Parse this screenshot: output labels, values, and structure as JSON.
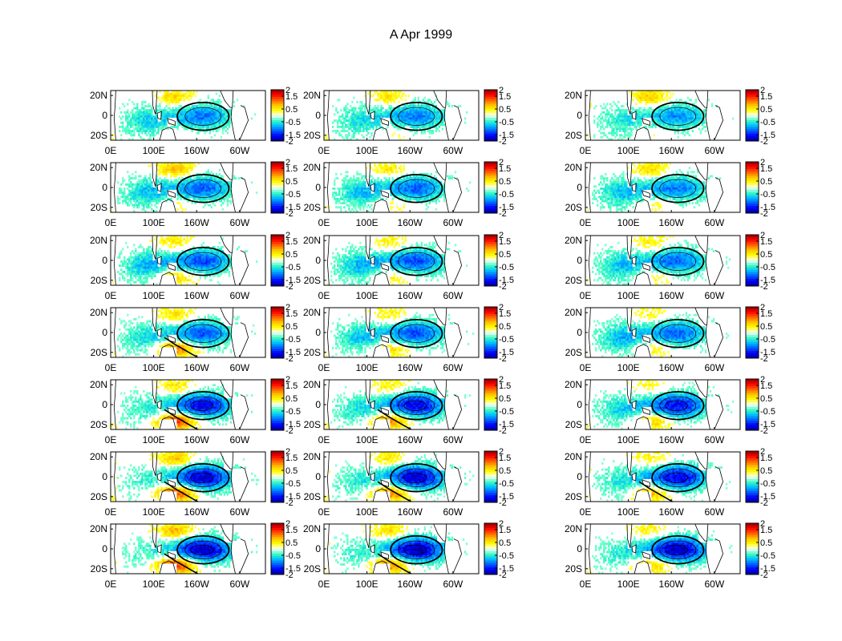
{
  "figure": {
    "title": "A Apr 1999"
  },
  "chart_data": {
    "type": "heatmap",
    "title": "A Apr 1999",
    "grid": {
      "rows": 7,
      "cols": 3
    },
    "x_ticks": [
      "0E",
      "100E",
      "160W",
      "60W"
    ],
    "x_tick_lon": [
      0,
      100,
      200,
      300
    ],
    "y_ticks": [
      "20N",
      "0",
      "20S"
    ],
    "y_tick_lat": [
      20,
      0,
      -20
    ],
    "xlim_lon": [
      0,
      360
    ],
    "ylim_lat": [
      -25,
      25
    ],
    "colorbar": {
      "ticks": [
        "2",
        "1.5",
        "0.5",
        "-0.5",
        "-1.5",
        "-2"
      ],
      "tick_values": [
        2,
        1.5,
        0.5,
        -0.5,
        -1.5,
        -2
      ],
      "range": [
        -2,
        2
      ],
      "colors": [
        "#00008f",
        "#0000ff",
        "#0060ff",
        "#00c0ff",
        "#40ffbf",
        "#ffffff",
        "#ffff00",
        "#ffc000",
        "#ff6000",
        "#ff0000",
        "#8f0000"
      ]
    },
    "panels": [
      {
        "row": 1,
        "col": 1,
        "cold": 1.1,
        "warm": 0.7,
        "w_cold": 0.9,
        "sw_warm": 0.3
      },
      {
        "row": 1,
        "col": 2,
        "cold": 1.1,
        "warm": 0.6,
        "w_cold": 0.8,
        "sw_warm": 0.4
      },
      {
        "row": 1,
        "col": 3,
        "cold": 1.0,
        "warm": 0.8,
        "w_cold": 0.7,
        "sw_warm": 0.3
      },
      {
        "row": 2,
        "col": 1,
        "cold": 1.2,
        "warm": 0.9,
        "w_cold": 1.0,
        "sw_warm": 0.5
      },
      {
        "row": 2,
        "col": 2,
        "cold": 1.2,
        "warm": 0.6,
        "w_cold": 1.0,
        "sw_warm": 0.6
      },
      {
        "row": 2,
        "col": 3,
        "cold": 1.1,
        "warm": 0.7,
        "w_cold": 1.0,
        "sw_warm": 0.5
      },
      {
        "row": 3,
        "col": 1,
        "cold": 1.3,
        "warm": 0.6,
        "w_cold": 1.1,
        "sw_warm": 0.9
      },
      {
        "row": 3,
        "col": 2,
        "cold": 1.3,
        "warm": 0.5,
        "w_cold": 1.1,
        "sw_warm": 0.7
      },
      {
        "row": 3,
        "col": 3,
        "cold": 1.2,
        "warm": 0.5,
        "w_cold": 1.0,
        "sw_warm": 0.6
      },
      {
        "row": 4,
        "col": 1,
        "cold": 1.3,
        "warm": 0.6,
        "w_cold": 0.9,
        "sw_warm": 1.4
      },
      {
        "row": 4,
        "col": 2,
        "cold": 1.3,
        "warm": 0.5,
        "w_cold": 1.0,
        "sw_warm": 0.9
      },
      {
        "row": 4,
        "col": 3,
        "cold": 1.2,
        "warm": 0.4,
        "w_cold": 1.1,
        "sw_warm": 0.7
      },
      {
        "row": 5,
        "col": 1,
        "cold": 1.7,
        "warm": 0.6,
        "w_cold": 0.7,
        "sw_warm": 1.7
      },
      {
        "row": 5,
        "col": 2,
        "cold": 1.7,
        "warm": 0.5,
        "w_cold": 0.8,
        "sw_warm": 1.3
      },
      {
        "row": 5,
        "col": 3,
        "cold": 1.6,
        "warm": 0.4,
        "w_cold": 0.9,
        "sw_warm": 1.0
      },
      {
        "row": 6,
        "col": 1,
        "cold": 1.8,
        "warm": 0.8,
        "w_cold": 0.6,
        "sw_warm": 1.6
      },
      {
        "row": 6,
        "col": 2,
        "cold": 1.8,
        "warm": 0.6,
        "w_cold": 0.7,
        "sw_warm": 1.4
      },
      {
        "row": 6,
        "col": 3,
        "cold": 1.7,
        "warm": 0.5,
        "w_cold": 0.8,
        "sw_warm": 1.1
      },
      {
        "row": 7,
        "col": 1,
        "cold": 1.9,
        "warm": 0.9,
        "w_cold": 0.5,
        "sw_warm": 1.7
      },
      {
        "row": 7,
        "col": 2,
        "cold": 1.9,
        "warm": 0.7,
        "w_cold": 0.6,
        "sw_warm": 1.4
      },
      {
        "row": 7,
        "col": 3,
        "cold": 1.9,
        "warm": 0.5,
        "w_cold": 0.7,
        "sw_warm": 1.0
      }
    ]
  }
}
